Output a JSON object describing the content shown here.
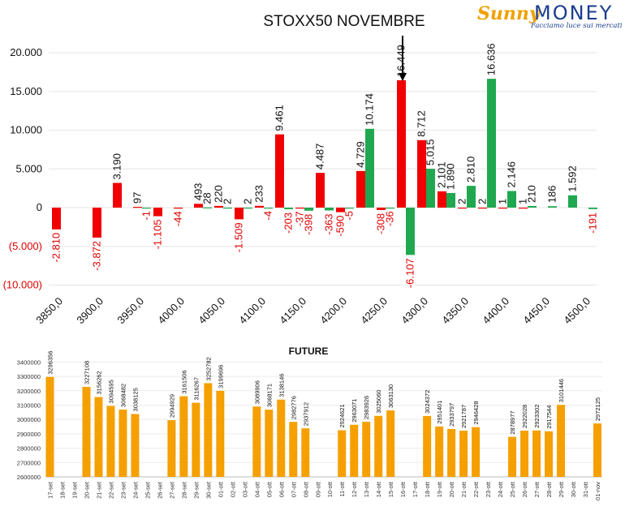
{
  "logo": {
    "brand_sunny": "Sunny",
    "brand_money": "MONEY",
    "tagline": "Facciamo luce sui mercati"
  },
  "colors": {
    "call": "#20a850",
    "put": "#f00000",
    "future": "#f5a000",
    "neg_label": "#e00000",
    "logo_blue": "#1b3d8f"
  },
  "chart_data": [
    {
      "type": "bar",
      "title": "STOXX50 NOVEMBRE",
      "ylim": [
        -10000,
        20000
      ],
      "y_ticks": [
        "(10.000)",
        "(5.000)",
        "0",
        "5.000",
        "10.000",
        "15.000",
        "20.000"
      ],
      "x_ticks": [
        "3850,0",
        "3900,0",
        "3950,0",
        "4000,0",
        "4050,0",
        "4100,0",
        "4150,0",
        "4200,0",
        "4250,0",
        "4300,0",
        "4350,0",
        "4400,0",
        "4450,0",
        "4500,0"
      ],
      "grid": true,
      "annotation": "arrow pointing to 16.449 bar",
      "bars": [
        {
          "strike": 3850,
          "series": "put",
          "value": -2810,
          "label": "-2.810"
        },
        {
          "strike": 3900,
          "series": "put",
          "value": -3872,
          "label": "-3.872"
        },
        {
          "strike": 3925,
          "series": "put",
          "value": 3190,
          "label": "3.190"
        },
        {
          "strike": 3950,
          "series": "put",
          "value": 97,
          "label": "97"
        },
        {
          "strike": 3950,
          "series": "call",
          "value": -1,
          "label": "-1"
        },
        {
          "strike": 3975,
          "series": "put",
          "value": -1105,
          "label": "-1.105"
        },
        {
          "strike": 4000,
          "series": "put",
          "value": -44,
          "label": "-44"
        },
        {
          "strike": 4025,
          "series": "call",
          "value": 28,
          "label": "28"
        },
        {
          "strike": 4025,
          "series": "put",
          "value": 493,
          "label": "493"
        },
        {
          "strike": 4050,
          "series": "call",
          "value": 2,
          "label": "2"
        },
        {
          "strike": 4050,
          "series": "put",
          "value": 220,
          "label": "220"
        },
        {
          "strike": 4075,
          "series": "call",
          "value": 2,
          "label": "2"
        },
        {
          "strike": 4075,
          "series": "put",
          "value": -1509,
          "label": "-1.509"
        },
        {
          "strike": 4100,
          "series": "call",
          "value": -4,
          "label": "-4"
        },
        {
          "strike": 4100,
          "series": "put",
          "value": 233,
          "label": "233"
        },
        {
          "strike": 4125,
          "series": "call",
          "value": -203,
          "label": "-203"
        },
        {
          "strike": 4125,
          "series": "put",
          "value": 9461,
          "label": "9.461"
        },
        {
          "strike": 4150,
          "series": "call",
          "value": -398,
          "label": "-398"
        },
        {
          "strike": 4150,
          "series": "put",
          "value": -37,
          "label": "-37"
        },
        {
          "strike": 4175,
          "series": "call",
          "value": -363,
          "label": "-363"
        },
        {
          "strike": 4175,
          "series": "put",
          "value": 4487,
          "label": "4.487"
        },
        {
          "strike": 4200,
          "series": "call",
          "value": -5,
          "label": "-5"
        },
        {
          "strike": 4200,
          "series": "put",
          "value": -590,
          "label": "-590"
        },
        {
          "strike": 4225,
          "series": "call",
          "value": 10174,
          "label": "10.174"
        },
        {
          "strike": 4225,
          "series": "put",
          "value": 4729,
          "label": "4.729"
        },
        {
          "strike": 4250,
          "series": "call",
          "value": -36,
          "label": "-36"
        },
        {
          "strike": 4250,
          "series": "put",
          "value": -308,
          "label": "-308"
        },
        {
          "strike": 4275,
          "series": "call",
          "value": -6107,
          "label": "-6.107"
        },
        {
          "strike": 4275,
          "series": "put",
          "value": 16449,
          "label": "16.449"
        },
        {
          "strike": 4300,
          "series": "call",
          "value": 5015,
          "label": "5.015"
        },
        {
          "strike": 4300,
          "series": "put",
          "value": 8712,
          "label": "8.712"
        },
        {
          "strike": 4325,
          "series": "call",
          "value": 1890,
          "label": "1.890"
        },
        {
          "strike": 4325,
          "series": "put",
          "value": 2101,
          "label": "2.101"
        },
        {
          "strike": 4350,
          "series": "call",
          "value": 2810,
          "label": "2.810"
        },
        {
          "strike": 4350,
          "series": "put",
          "value": 2,
          "label": "2"
        },
        {
          "strike": 4375,
          "series": "call",
          "value": 16636,
          "label": "16.636"
        },
        {
          "strike": 4375,
          "series": "put",
          "value": 2,
          "label": "2"
        },
        {
          "strike": 4400,
          "series": "call",
          "value": 2146,
          "label": "2.146"
        },
        {
          "strike": 4400,
          "series": "put",
          "value": 1,
          "label": "1"
        },
        {
          "strike": 4425,
          "series": "call",
          "value": 210,
          "label": "210"
        },
        {
          "strike": 4425,
          "series": "put",
          "value": 1,
          "label": "1"
        },
        {
          "strike": 4450,
          "series": "call",
          "value": 186,
          "label": "186"
        },
        {
          "strike": 4475,
          "series": "call",
          "value": 1592,
          "label": "1.592"
        },
        {
          "strike": 4500,
          "series": "call",
          "value": -191,
          "label": "-191"
        }
      ]
    },
    {
      "type": "bar",
      "title": "FUTURE",
      "ylim": [
        2600000,
        3400000
      ],
      "y_ticks": [
        "2600000",
        "2700000",
        "2800000",
        "2900000",
        "3000000",
        "3100000",
        "3200000",
        "3300000",
        "3400000"
      ],
      "categories": [
        "17-set",
        "18-set",
        "19-set",
        "20-set",
        "21-set",
        "22-set",
        "23-set",
        "24-set",
        "25-set",
        "26-set",
        "27-set",
        "28-set",
        "29-set",
        "30-set",
        "01-ott",
        "02-ott",
        "03-ott",
        "04-ott",
        "05-ott",
        "06-ott",
        "07-ott",
        "08-ott",
        "09-ott",
        "10-ott",
        "11-ott",
        "12-ott",
        "13-ott",
        "14-ott",
        "15-ott",
        "16-ott",
        "17-ott",
        "18-ott",
        "19-ott",
        "20-ott",
        "21-ott",
        "22-ott",
        "23-ott",
        "24-ott",
        "25-ott",
        "26-ott",
        "27-ott",
        "28-ott",
        "29-ott",
        "30-ott",
        "31-ott",
        "01-nov"
      ],
      "values": [
        3296356,
        null,
        null,
        3227108,
        3156262,
        3094595,
        3068482,
        3038125,
        null,
        null,
        2994929,
        3161506,
        3116267,
        3252782,
        3199696,
        null,
        null,
        3089906,
        3068171,
        3138146,
        2982776,
        2937912,
        null,
        null,
        2924621,
        2963071,
        2983926,
        3025060,
        3063130,
        null,
        null,
        3024372,
        2951401,
        2933797,
        2921787,
        2946428,
        null,
        null,
        2878977,
        2922028,
        2923302,
        2917544,
        3101446,
        null,
        null,
        2972125
      ]
    }
  ]
}
